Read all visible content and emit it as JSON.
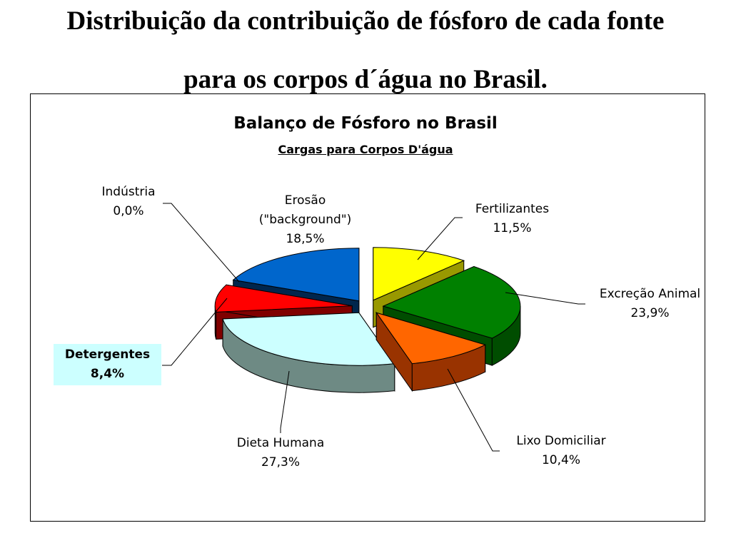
{
  "slide": {
    "title_line1": "Distribuição da contribuição de fósforo de cada fonte",
    "title_line2": "para os corpos d´água no Brasil."
  },
  "chart_data": {
    "type": "pie",
    "style": "3d-exploded",
    "title": "Balanço de Fósforo no Brasil",
    "subtitle": "Cargas para Corpos D'água",
    "slices": [
      {
        "name": "Fertilizantes",
        "value": 11.5,
        "value_label": "11,5%",
        "color": "#ffff00",
        "side": "#999900"
      },
      {
        "name": "Excreção Animal",
        "value": 23.9,
        "value_label": "23,9%",
        "color": "#008000",
        "side": "#004d00"
      },
      {
        "name": "Lixo Domiciliar",
        "value": 10.4,
        "value_label": "10,4%",
        "color": "#ff6600",
        "side": "#993300"
      },
      {
        "name": "Dieta Humana",
        "value": 27.3,
        "value_label": "27,3%",
        "color": "#ccffff",
        "side": "#6e8a84"
      },
      {
        "name": "Detergentes",
        "value": 8.4,
        "value_label": "8,4%",
        "color": "#ff0000",
        "side": "#800000",
        "highlighted": true
      },
      {
        "name": "Indústria",
        "value": 0.0,
        "value_label": "0,0%",
        "color": "#000080",
        "side": "#000040"
      },
      {
        "name": "Erosão (\"background\")",
        "name_line1": "Erosão",
        "name_line2": "(\"background\")",
        "value": 18.5,
        "value_label": "18,5%",
        "color": "#0066cc",
        "side": "#00264d"
      }
    ]
  }
}
